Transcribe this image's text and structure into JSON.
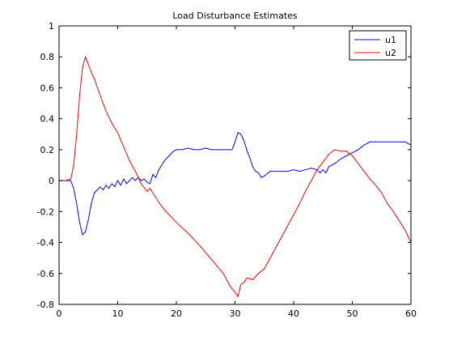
{
  "chart_data": {
    "type": "line",
    "title": "Load Disturbance Estimates",
    "xlabel": "",
    "ylabel": "",
    "xlim": [
      0,
      60
    ],
    "ylim": [
      -0.8,
      1
    ],
    "xticks": [
      0,
      10,
      20,
      30,
      40,
      50,
      60
    ],
    "yticks": [
      -0.8,
      -0.6,
      -0.4,
      -0.2,
      0,
      0.2,
      0.4,
      0.6,
      0.8,
      1
    ],
    "xtick_labels": [
      "0",
      "10",
      "20",
      "30",
      "40",
      "50",
      "60"
    ],
    "ytick_labels": [
      "-0.8",
      "-0.6",
      "-0.4",
      "-0.2",
      "0",
      "0.2",
      "0.4",
      "0.6",
      "0.8",
      "1"
    ],
    "grid": false,
    "legend_position": "top-right",
    "series": [
      {
        "name": "u1",
        "color": "#0000ff",
        "x": [
          0,
          1,
          2,
          2.5,
          3,
          3.5,
          4,
          4.5,
          5,
          5.5,
          6,
          6.5,
          7,
          7.5,
          8,
          8.5,
          9,
          9.5,
          10,
          10.5,
          11,
          11.5,
          12,
          12.5,
          13,
          13.5,
          14,
          14.5,
          15,
          15.5,
          16,
          16.5,
          17,
          17.5,
          18,
          18.5,
          19,
          19.5,
          20,
          21,
          22,
          23,
          24,
          25,
          26,
          27,
          28,
          29,
          29.5,
          30,
          30.5,
          31,
          31.5,
          32,
          32.5,
          33,
          33.5,
          34,
          34.5,
          35,
          36,
          37,
          38,
          39,
          40,
          41,
          42,
          43,
          44,
          44.5,
          45,
          45.5,
          46,
          47,
          48,
          49,
          50,
          51,
          52,
          53,
          54,
          55,
          56,
          57,
          58,
          59,
          60
        ],
        "y": [
          0,
          0,
          0,
          -0.05,
          -0.15,
          -0.27,
          -0.35,
          -0.33,
          -0.25,
          -0.15,
          -0.08,
          -0.06,
          -0.04,
          -0.06,
          -0.03,
          -0.05,
          -0.02,
          -0.04,
          0.0,
          -0.03,
          0.01,
          -0.02,
          0.0,
          0.02,
          0.0,
          0.02,
          0.0,
          0.01,
          -0.01,
          -0.02,
          0.04,
          0.02,
          0.07,
          0.1,
          0.13,
          0.15,
          0.17,
          0.19,
          0.2,
          0.2,
          0.21,
          0.2,
          0.2,
          0.21,
          0.2,
          0.2,
          0.2,
          0.2,
          0.2,
          0.25,
          0.31,
          0.3,
          0.26,
          0.2,
          0.15,
          0.09,
          0.06,
          0.05,
          0.02,
          0.03,
          0.06,
          0.06,
          0.06,
          0.06,
          0.07,
          0.06,
          0.07,
          0.08,
          0.07,
          0.05,
          0.07,
          0.05,
          0.09,
          0.11,
          0.14,
          0.16,
          0.18,
          0.2,
          0.23,
          0.25,
          0.25,
          0.25,
          0.25,
          0.25,
          0.25,
          0.25,
          0.23
        ]
      },
      {
        "name": "u2",
        "color": "#ff0000",
        "x": [
          0,
          1,
          2,
          2.5,
          3,
          3.5,
          4,
          4.5,
          5,
          5.5,
          6,
          7,
          8,
          9,
          10,
          11,
          12,
          13,
          14,
          15,
          15.5,
          16,
          17,
          18,
          19,
          20,
          22,
          24,
          26,
          28,
          29,
          29.5,
          30,
          30.5,
          31,
          31.5,
          32,
          33,
          34,
          35,
          36,
          37,
          38,
          39,
          40,
          41,
          42,
          43,
          44,
          45,
          46,
          47,
          48,
          49,
          50,
          51,
          52,
          53,
          54,
          55,
          56,
          57,
          58,
          59,
          60
        ],
        "y": [
          0,
          0,
          0.01,
          0.1,
          0.3,
          0.55,
          0.73,
          0.8,
          0.75,
          0.7,
          0.66,
          0.55,
          0.45,
          0.37,
          0.31,
          0.22,
          0.13,
          0.06,
          -0.02,
          -0.07,
          -0.05,
          -0.08,
          -0.14,
          -0.19,
          -0.23,
          -0.27,
          -0.34,
          -0.42,
          -0.51,
          -0.6,
          -0.67,
          -0.7,
          -0.72,
          -0.75,
          -0.67,
          -0.66,
          -0.63,
          -0.64,
          -0.6,
          -0.57,
          -0.5,
          -0.43,
          -0.36,
          -0.29,
          -0.22,
          -0.15,
          -0.07,
          0.0,
          0.07,
          0.12,
          0.17,
          0.2,
          0.19,
          0.19,
          0.16,
          0.11,
          0.06,
          0.01,
          -0.03,
          -0.08,
          -0.15,
          -0.2,
          -0.26,
          -0.32,
          -0.4
        ]
      }
    ]
  }
}
